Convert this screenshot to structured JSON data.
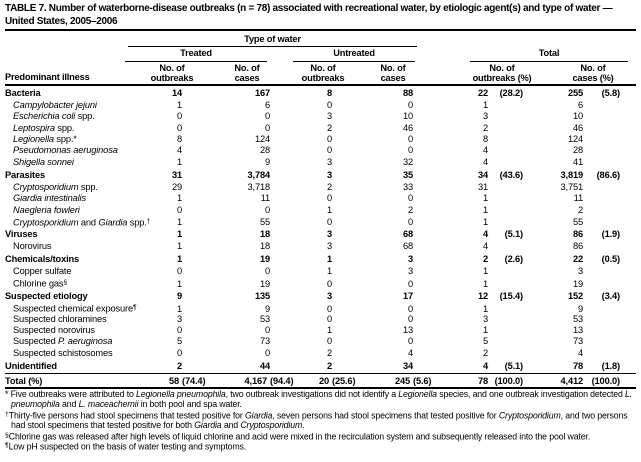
{
  "title": "TABLE 7. Number of waterborne-disease outbreaks (n = 78) associated with recreational water, by etiologic agent(s) and type of water — United States, 2005–2006",
  "header": {
    "type_of_water": "Type of water",
    "treated": "Treated",
    "untreated": "Untreated",
    "total": "Total",
    "predominant_illness": "Predominant illness",
    "sub": [
      {
        "l1": "No. of",
        "l2": "outbreaks"
      },
      {
        "l1": "No. of",
        "l2": "cases"
      },
      {
        "l1": "No. of",
        "l2": "outbreaks"
      },
      {
        "l1": "No. of",
        "l2": "cases"
      },
      {
        "l1": "No. of",
        "l2": "outbreaks (%)"
      },
      {
        "l1": "No. of",
        "l2": "cases (%)"
      }
    ]
  },
  "table": {
    "rows": [
      {
        "type": "c",
        "name": [
          [
            "r",
            "Bacteria"
          ]
        ],
        "cells": [
          "14",
          "167",
          "8",
          "88"
        ],
        "tot": [
          "22",
          "(28.2)",
          "255",
          "(5.8)"
        ]
      },
      {
        "type": "s",
        "name": [
          [
            "i",
            "Campylobacter jejuni"
          ]
        ],
        "cells": [
          "1",
          "6",
          "0",
          "0"
        ],
        "tot": [
          "1",
          "",
          "6",
          ""
        ]
      },
      {
        "type": "s",
        "name": [
          [
            "i",
            "Escherichia coli"
          ],
          [
            "r",
            " spp."
          ]
        ],
        "cells": [
          "0",
          "0",
          "3",
          "10"
        ],
        "tot": [
          "3",
          "",
          "10",
          ""
        ]
      },
      {
        "type": "s",
        "name": [
          [
            "i",
            "Leptospira"
          ],
          [
            "r",
            " spp."
          ]
        ],
        "cells": [
          "0",
          "0",
          "2",
          "46"
        ],
        "tot": [
          "2",
          "",
          "46",
          ""
        ]
      },
      {
        "type": "s",
        "name": [
          [
            "i",
            "Legionella"
          ],
          [
            "r",
            " spp.*"
          ]
        ],
        "cells": [
          "8",
          "124",
          "0",
          "0"
        ],
        "tot": [
          "8",
          "",
          "124",
          ""
        ]
      },
      {
        "type": "s",
        "name": [
          [
            "i",
            "Pseudomonas aeruginosa"
          ]
        ],
        "cells": [
          "4",
          "28",
          "0",
          "0"
        ],
        "tot": [
          "4",
          "",
          "28",
          ""
        ]
      },
      {
        "type": "s",
        "name": [
          [
            "i",
            "Shigella sonnei"
          ]
        ],
        "cells": [
          "1",
          "9",
          "3",
          "32"
        ],
        "tot": [
          "4",
          "",
          "41",
          ""
        ]
      },
      {
        "type": "c",
        "name": [
          [
            "r",
            "Parasites"
          ]
        ],
        "cells": [
          "31",
          "3,784",
          "3",
          "35"
        ],
        "tot": [
          "34",
          "(43.6)",
          "3,819",
          "(86.6)"
        ]
      },
      {
        "type": "s",
        "name": [
          [
            "i",
            "Cryptosporidium"
          ],
          [
            "r",
            " spp."
          ]
        ],
        "cells": [
          "29",
          "3,718",
          "2",
          "33"
        ],
        "tot": [
          "31",
          "",
          "3,751",
          ""
        ]
      },
      {
        "type": "s",
        "name": [
          [
            "i",
            "Giardia intestinalis"
          ]
        ],
        "cells": [
          "1",
          "11",
          "0",
          "0"
        ],
        "tot": [
          "1",
          "",
          "11",
          ""
        ]
      },
      {
        "type": "s",
        "name": [
          [
            "i",
            "Naegleria fowleri"
          ]
        ],
        "cells": [
          "0",
          "0",
          "1",
          "2"
        ],
        "tot": [
          "1",
          "",
          "2",
          ""
        ]
      },
      {
        "type": "s",
        "name": [
          [
            "i",
            "Cryptosporidium"
          ],
          [
            "r",
            " and "
          ],
          [
            "i",
            "Giardia"
          ],
          [
            "r",
            " spp."
          ],
          [
            "sup",
            "†"
          ]
        ],
        "cells": [
          "1",
          "55",
          "0",
          "0"
        ],
        "tot": [
          "1",
          "",
          "55",
          ""
        ]
      },
      {
        "type": "c",
        "name": [
          [
            "r",
            "Viruses"
          ]
        ],
        "cells": [
          "1",
          "18",
          "3",
          "68"
        ],
        "tot": [
          "4",
          "(5.1)",
          "86",
          "(1.9)"
        ]
      },
      {
        "type": "s",
        "name": [
          [
            "r",
            "Norovirus"
          ]
        ],
        "cells": [
          "1",
          "18",
          "3",
          "68"
        ],
        "tot": [
          "4",
          "",
          "86",
          ""
        ]
      },
      {
        "type": "c",
        "name": [
          [
            "r",
            "Chemicals/toxins"
          ]
        ],
        "cells": [
          "1",
          "19",
          "1",
          "3"
        ],
        "tot": [
          "2",
          "(2.6)",
          "22",
          "(0.5)"
        ]
      },
      {
        "type": "s",
        "name": [
          [
            "r",
            "Copper sulfate"
          ]
        ],
        "cells": [
          "0",
          "0",
          "1",
          "3"
        ],
        "tot": [
          "1",
          "",
          "3",
          ""
        ]
      },
      {
        "type": "s",
        "name": [
          [
            "r",
            "Chlorine gas"
          ],
          [
            "sup",
            "§"
          ]
        ],
        "cells": [
          "1",
          "19",
          "0",
          "0"
        ],
        "tot": [
          "1",
          "",
          "19",
          ""
        ]
      },
      {
        "type": "c",
        "name": [
          [
            "r",
            "Suspected etiology"
          ]
        ],
        "cells": [
          "9",
          "135",
          "3",
          "17"
        ],
        "tot": [
          "12",
          "(15.4)",
          "152",
          "(3.4)"
        ]
      },
      {
        "type": "s",
        "name": [
          [
            "r",
            "Suspected chemical exposure"
          ],
          [
            "sup",
            "¶"
          ]
        ],
        "cells": [
          "1",
          "9",
          "0",
          "0"
        ],
        "tot": [
          "1",
          "",
          "9",
          ""
        ]
      },
      {
        "type": "s",
        "name": [
          [
            "r",
            "Suspected chloramines"
          ]
        ],
        "cells": [
          "3",
          "53",
          "0",
          "0"
        ],
        "tot": [
          "3",
          "",
          "53",
          ""
        ]
      },
      {
        "type": "s",
        "name": [
          [
            "r",
            "Suspected norovirus"
          ]
        ],
        "cells": [
          "0",
          "0",
          "1",
          "13"
        ],
        "tot": [
          "1",
          "",
          "13",
          ""
        ]
      },
      {
        "type": "s",
        "name": [
          [
            "r",
            "Suspected "
          ],
          [
            "i",
            "P. aeruginosa"
          ]
        ],
        "cells": [
          "5",
          "73",
          "0",
          "0"
        ],
        "tot": [
          "5",
          "",
          "73",
          ""
        ]
      },
      {
        "type": "s",
        "name": [
          [
            "r",
            "Suspected schistosomes"
          ]
        ],
        "cells": [
          "0",
          "0",
          "2",
          "4"
        ],
        "tot": [
          "2",
          "",
          "4",
          ""
        ]
      },
      {
        "type": "c",
        "name": [
          [
            "r",
            "Unidentified"
          ]
        ],
        "cells": [
          "2",
          "44",
          "2",
          "34"
        ],
        "tot": [
          "4",
          "(5.1)",
          "78",
          "(1.8)"
        ]
      },
      {
        "type": "t",
        "name": [
          [
            "r",
            "Total (%)"
          ]
        ],
        "cells": [
          "58",
          "4,167",
          "20",
          "245"
        ],
        "cellpcts": [
          "(74.4)",
          "(94.4)",
          "(25.6)",
          "(5.6)"
        ],
        "tot": [
          "78",
          "(100.0)",
          "4,412",
          "(100.0)"
        ]
      }
    ]
  },
  "footnotes": [
    {
      "parts": [
        [
          "r",
          "* Five outbreaks were attributed to "
        ],
        [
          "i",
          "Legionella pneumophila"
        ],
        [
          "r",
          ", two outbreak investigations did not identify a "
        ],
        [
          "i",
          "Legionella"
        ],
        [
          "r",
          " species, and one outbreak investigation detected "
        ],
        [
          "i",
          "L. pneumophila"
        ],
        [
          "r",
          " and "
        ],
        [
          "i",
          "L. maceachernii"
        ],
        [
          "r",
          " in both pool and spa water."
        ]
      ]
    },
    {
      "parts": [
        [
          "sup",
          "†"
        ],
        [
          "r",
          "Thirty-five persons had stool specimens that tested positive for "
        ],
        [
          "i",
          "Giardia"
        ],
        [
          "r",
          ", seven persons had stool specimens that tested positive for "
        ],
        [
          "i",
          "Cryptosporidium"
        ],
        [
          "r",
          ", and two persons had stool specimens that tested positive for both "
        ],
        [
          "i",
          "Giardia"
        ],
        [
          "r",
          " and "
        ],
        [
          "i",
          "Cryptosporidium"
        ],
        [
          "r",
          "."
        ]
      ]
    },
    {
      "parts": [
        [
          "sup",
          "§"
        ],
        [
          "r",
          "Chlorine gas was released after high levels of liquid chlorine and acid were mixed in the recirculation system and subsequently released into the pool water."
        ]
      ]
    },
    {
      "parts": [
        [
          "sup",
          "¶"
        ],
        [
          "r",
          "Low pH suspected on the basis of water testing and symptoms."
        ]
      ]
    }
  ]
}
